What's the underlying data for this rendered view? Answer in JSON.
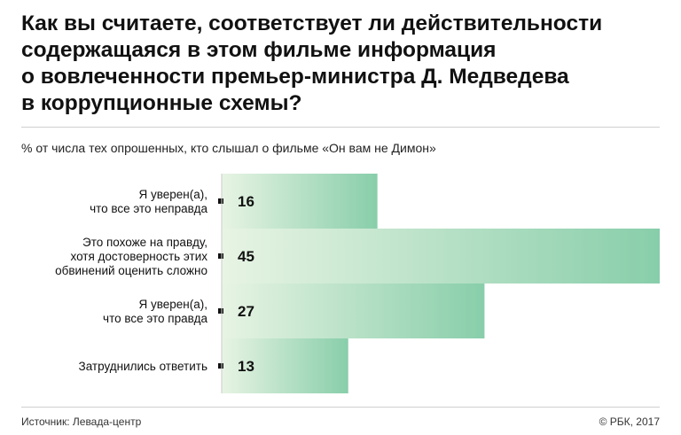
{
  "chart_data": {
    "type": "bar",
    "orientation": "horizontal",
    "title": "Как вы считаете, соответствует ли действительности\nсодержащаяся в этом фильме информация\nо вовлеченности премьер-министра Д. Медведева\nв коррупционные схемы?",
    "subtitle": "% от числа тех опрошенных, кто слышал о фильме «Он вам не Димон»",
    "categories": [
      [
        "Я уверен(а),",
        "что все это неправда"
      ],
      [
        "Это похоже на правду,",
        "хотя достоверность этих",
        "обвинений оценить сложно"
      ],
      [
        "Я уверен(а),",
        "что все это правда"
      ],
      [
        "Затруднились ответить"
      ]
    ],
    "values": [
      16,
      45,
      27,
      13
    ],
    "xlim": [
      0,
      45
    ],
    "grid": false,
    "legend": "none",
    "colors": {
      "bar_start": "#e8f4e4",
      "bar_end": "#88ceaa",
      "marker": "#111111",
      "axis": "#cccccc"
    }
  },
  "footer": {
    "source": "Источник: Левада-центр",
    "copyright": "© РБК, 2017"
  }
}
